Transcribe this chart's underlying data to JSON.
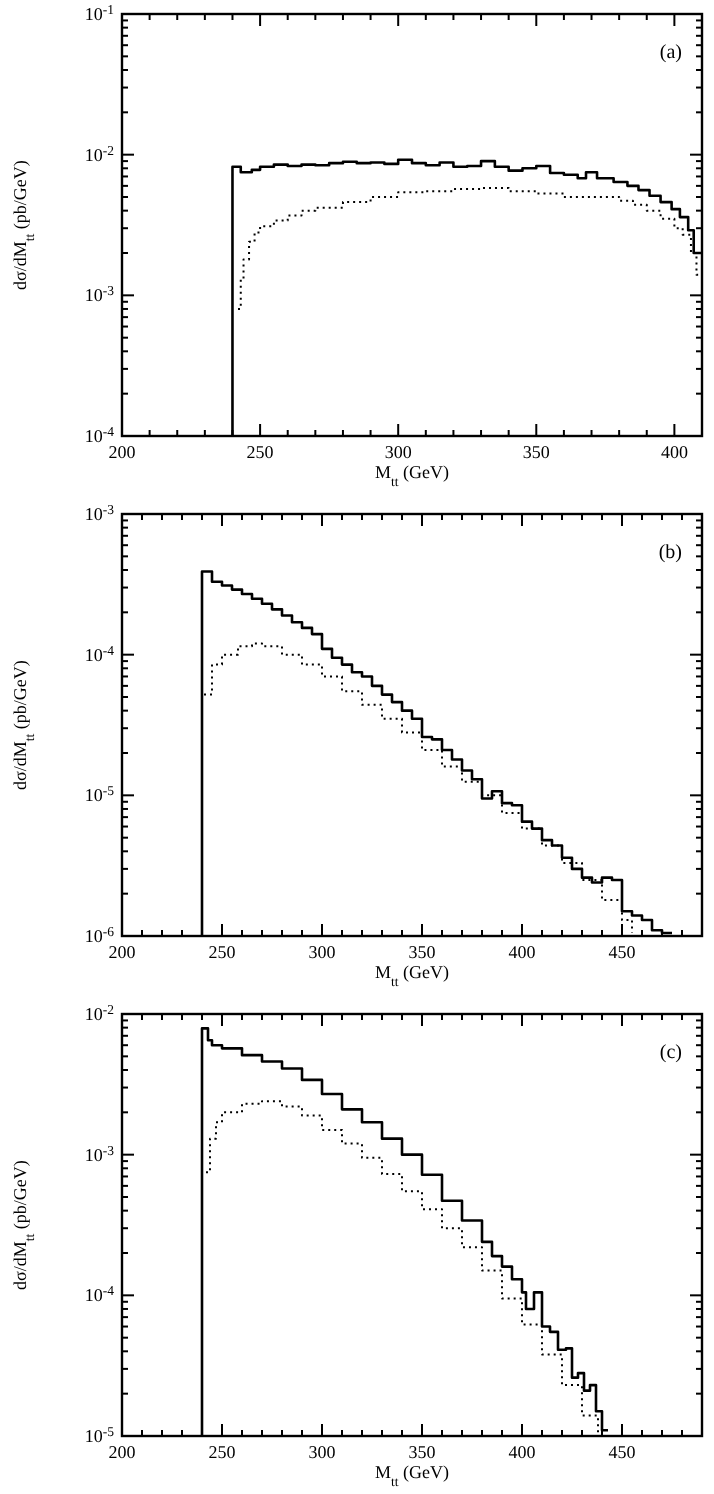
{
  "chart_data": [
    {
      "type": "step",
      "xlabel": "M$_{tt}$ (GeV)",
      "ylabel": "dσ/dM$_{tt}$ (pb/GeV)",
      "log": "y",
      "annotations": [
        "(a)"
      ],
      "xlim": [
        200,
        410
      ],
      "ylim": [
        0.0001,
        0.1
      ],
      "xticks": [
        200,
        {
          "value": 210,
          "label": null
        },
        {
          "value": 220,
          "label": null
        },
        {
          "value": 230,
          "label": null
        },
        {
          "value": 240,
          "label": null
        },
        250,
        {
          "value": 260,
          "label": null
        },
        {
          "value": 270,
          "label": null
        },
        {
          "value": 280,
          "label": null
        },
        {
          "value": 290,
          "label": null
        },
        300,
        {
          "value": 310,
          "label": null
        },
        {
          "value": 320,
          "label": null
        },
        {
          "value": 330,
          "label": null
        },
        {
          "value": 340,
          "label": null
        },
        350,
        {
          "value": 360,
          "label": null
        },
        {
          "value": 370,
          "label": null
        },
        {
          "value": 380,
          "label": null
        },
        {
          "value": 390,
          "label": null
        },
        400
      ],
      "yticks": [
        {
          "value": 0.0001,
          "label": "10$^{-4}$"
        },
        {
          "value": 0.0002,
          "label": null
        },
        {
          "value": 0.0003,
          "label": null
        },
        {
          "value": 0.0004,
          "label": null
        },
        {
          "value": 0.0005,
          "label": null
        },
        {
          "value": 0.0006,
          "label": null
        },
        {
          "value": 0.0007,
          "label": null
        },
        {
          "value": 0.0008,
          "label": null
        },
        {
          "value": 0.0009,
          "label": null
        },
        {
          "value": 0.001,
          "label": "10$^{-3}$"
        },
        {
          "value": 0.002,
          "label": null
        },
        {
          "value": 0.003,
          "label": null
        },
        {
          "value": 0.004,
          "label": null
        },
        {
          "value": 0.005,
          "label": null
        },
        {
          "value": 0.006,
          "label": null
        },
        {
          "value": 0.007,
          "label": null
        },
        {
          "value": 0.008,
          "label": null
        },
        {
          "value": 0.009,
          "label": null
        },
        {
          "value": 0.01,
          "label": "10$^{-2}$"
        },
        {
          "value": 0.02,
          "label": null
        },
        {
          "value": 0.03,
          "label": null
        },
        {
          "value": 0.04,
          "label": null
        },
        {
          "value": 0.05,
          "label": null
        },
        {
          "value": 0.06,
          "label": null
        },
        {
          "value": 0.07,
          "label": null
        },
        {
          "value": 0.08,
          "label": null
        },
        {
          "value": 0.09,
          "label": null
        },
        {
          "value": 0.1,
          "label": "10$^{-1}$"
        }
      ],
      "series": [
        {
          "color": "#000000",
          "line_style": "solid",
          "x": [
            240,
            240,
            243,
            247,
            250,
            255,
            260,
            265,
            270,
            275,
            280,
            285,
            290,
            295,
            300,
            305,
            310,
            315,
            320,
            325,
            330,
            335,
            340,
            345,
            350,
            355,
            360,
            365,
            368,
            372,
            378,
            383,
            387,
            391,
            395,
            399,
            402,
            405,
            407,
            410
          ],
          "values": [
            0.0001,
            0.0082,
            0.0075,
            0.0078,
            0.0082,
            0.0085,
            0.0083,
            0.0085,
            0.0084,
            0.0087,
            0.0089,
            0.0087,
            0.0088,
            0.0086,
            0.0092,
            0.0087,
            0.0084,
            0.0088,
            0.0082,
            0.0083,
            0.009,
            0.0082,
            0.0077,
            0.008,
            0.0083,
            0.0074,
            0.0072,
            0.0068,
            0.0075,
            0.0068,
            0.0064,
            0.006,
            0.0056,
            0.0051,
            0.0046,
            0.0041,
            0.0036,
            0.0029,
            0.002,
            0.002
          ]
        },
        {
          "color": "#000000",
          "line_style": "dotted",
          "x": [
            242,
            243,
            244,
            246,
            248,
            250,
            255,
            260,
            265,
            270,
            280,
            290,
            300,
            310,
            320,
            330,
            340,
            350,
            360,
            370,
            380,
            385,
            390,
            395,
            400,
            403,
            406,
            408,
            410
          ],
          "values": [
            0.0008,
            0.0013,
            0.0018,
            0.0024,
            0.0028,
            0.0031,
            0.0034,
            0.0037,
            0.004,
            0.0042,
            0.0046,
            0.005,
            0.0054,
            0.0055,
            0.0057,
            0.0058,
            0.0055,
            0.0053,
            0.005,
            0.005,
            0.0047,
            0.0044,
            0.004,
            0.0035,
            0.003,
            0.0027,
            0.002,
            0.0014,
            0.0014
          ]
        }
      ]
    },
    {
      "type": "step",
      "xlabel": "M$_{tt}$ (GeV)",
      "ylabel": "dσ/dM$_{tt}$ (pb/GeV)",
      "log": "y",
      "annotations": [
        "(b)"
      ],
      "xlim": [
        200,
        490
      ],
      "ylim": [
        1e-06,
        0.001
      ],
      "xticks": [
        200,
        {
          "value": 210,
          "label": null
        },
        {
          "value": 220,
          "label": null
        },
        {
          "value": 230,
          "label": null
        },
        {
          "value": 240,
          "label": null
        },
        250,
        {
          "value": 260,
          "label": null
        },
        {
          "value": 270,
          "label": null
        },
        {
          "value": 280,
          "label": null
        },
        {
          "value": 290,
          "label": null
        },
        300,
        {
          "value": 310,
          "label": null
        },
        {
          "value": 320,
          "label": null
        },
        {
          "value": 330,
          "label": null
        },
        {
          "value": 340,
          "label": null
        },
        350,
        {
          "value": 360,
          "label": null
        },
        {
          "value": 370,
          "label": null
        },
        {
          "value": 380,
          "label": null
        },
        {
          "value": 390,
          "label": null
        },
        400,
        {
          "value": 410,
          "label": null
        },
        {
          "value": 420,
          "label": null
        },
        {
          "value": 430,
          "label": null
        },
        {
          "value": 440,
          "label": null
        },
        450,
        {
          "value": 460,
          "label": null
        },
        {
          "value": 470,
          "label": null
        },
        {
          "value": 480,
          "label": null
        }
      ],
      "yticks": [
        {
          "value": 1e-06,
          "label": "10$^{-6}$"
        },
        {
          "value": 2e-06,
          "label": null
        },
        {
          "value": 3e-06,
          "label": null
        },
        {
          "value": 4e-06,
          "label": null
        },
        {
          "value": 5e-06,
          "label": null
        },
        {
          "value": 6e-06,
          "label": null
        },
        {
          "value": 7e-06,
          "label": null
        },
        {
          "value": 8e-06,
          "label": null
        },
        {
          "value": 9e-06,
          "label": null
        },
        {
          "value": 1e-05,
          "label": "10$^{-5}$"
        },
        {
          "value": 2e-05,
          "label": null
        },
        {
          "value": 3e-05,
          "label": null
        },
        {
          "value": 4e-05,
          "label": null
        },
        {
          "value": 5e-05,
          "label": null
        },
        {
          "value": 6e-05,
          "label": null
        },
        {
          "value": 7e-05,
          "label": null
        },
        {
          "value": 8e-05,
          "label": null
        },
        {
          "value": 9e-05,
          "label": null
        },
        {
          "value": 0.0001,
          "label": "10$^{-4}$"
        },
        {
          "value": 0.0002,
          "label": null
        },
        {
          "value": 0.0003,
          "label": null
        },
        {
          "value": 0.0004,
          "label": null
        },
        {
          "value": 0.0005,
          "label": null
        },
        {
          "value": 0.0006,
          "label": null
        },
        {
          "value": 0.0007,
          "label": null
        },
        {
          "value": 0.0008,
          "label": null
        },
        {
          "value": 0.0009,
          "label": null
        },
        {
          "value": 0.001,
          "label": "10$^{-3}$"
        }
      ],
      "series": [
        {
          "color": "#000000",
          "line_style": "solid",
          "x": [
            240,
            240,
            245,
            250,
            255,
            260,
            265,
            270,
            275,
            280,
            285,
            290,
            295,
            300,
            305,
            310,
            315,
            320,
            325,
            330,
            335,
            340,
            345,
            350,
            355,
            360,
            365,
            370,
            375,
            380,
            385,
            390,
            395,
            400,
            405,
            410,
            415,
            420,
            425,
            430,
            435,
            440,
            445,
            450,
            455,
            460,
            465,
            470,
            475
          ],
          "values": [
            1e-06,
            0.00039,
            0.00033,
            0.00031,
            0.00029,
            0.00027,
            0.00025,
            0.00023,
            0.00021,
            0.00019,
            0.00017,
            0.000155,
            0.00014,
            0.00011,
            9.5e-05,
            8.5e-05,
            7.5e-05,
            7e-05,
            6e-05,
            5.2e-05,
            4.6e-05,
            4e-05,
            3.5e-05,
            2.6e-05,
            2.5e-05,
            2.1e-05,
            1.8e-05,
            1.5e-05,
            1.3e-05,
            9.5e-06,
            1.07e-05,
            8.8e-06,
            8.5e-06,
            6.5e-06,
            5.8e-06,
            4.8e-06,
            4.4e-06,
            3.6e-06,
            3e-06,
            2.6e-06,
            2.4e-06,
            2.6e-06,
            2.5e-06,
            1.5e-06,
            1.4e-06,
            1.3e-06,
            1.1e-06,
            1.05e-06,
            1.05e-06
          ]
        },
        {
          "color": "#000000",
          "line_style": "dotted",
          "x": [
            241,
            245,
            250,
            258,
            265,
            270,
            280,
            290,
            300,
            310,
            320,
            330,
            340,
            350,
            360,
            370,
            380,
            390,
            400,
            410,
            420,
            430,
            440,
            450,
            455
          ],
          "values": [
            5.2e-05,
            8.5e-05,
            0.0001,
            0.000115,
            0.00012,
            0.000115,
            0.0001,
            8.5e-05,
            7e-05,
            5.5e-05,
            4.4e-05,
            3.5e-05,
            2.8e-05,
            2.1e-05,
            1.6e-05,
            1.25e-05,
            1e-05,
            7.5e-06,
            5.8e-06,
            4.4e-06,
            3.3e-06,
            2.5e-06,
            1.8e-06,
            1.3e-06,
            1.05e-06
          ]
        }
      ]
    },
    {
      "type": "step",
      "xlabel": "M$_{tt}$ (GeV)",
      "ylabel": "dσ/dM$_{tt}$ (pb/GeV)",
      "log": "y",
      "annotations": [
        "(c)"
      ],
      "xlim": [
        200,
        490
      ],
      "ylim": [
        1e-05,
        0.01
      ],
      "xticks": [
        200,
        {
          "value": 210,
          "label": null
        },
        {
          "value": 220,
          "label": null
        },
        {
          "value": 230,
          "label": null
        },
        {
          "value": 240,
          "label": null
        },
        250,
        {
          "value": 260,
          "label": null
        },
        {
          "value": 270,
          "label": null
        },
        {
          "value": 280,
          "label": null
        },
        {
          "value": 290,
          "label": null
        },
        300,
        {
          "value": 310,
          "label": null
        },
        {
          "value": 320,
          "label": null
        },
        {
          "value": 330,
          "label": null
        },
        {
          "value": 340,
          "label": null
        },
        350,
        {
          "value": 360,
          "label": null
        },
        {
          "value": 370,
          "label": null
        },
        {
          "value": 380,
          "label": null
        },
        {
          "value": 390,
          "label": null
        },
        400,
        {
          "value": 410,
          "label": null
        },
        {
          "value": 420,
          "label": null
        },
        {
          "value": 430,
          "label": null
        },
        {
          "value": 440,
          "label": null
        },
        450,
        {
          "value": 460,
          "label": null
        },
        {
          "value": 470,
          "label": null
        },
        {
          "value": 480,
          "label": null
        }
      ],
      "yticks": [
        {
          "value": 1e-05,
          "label": "10$^{-5}$"
        },
        {
          "value": 2e-05,
          "label": null
        },
        {
          "value": 3e-05,
          "label": null
        },
        {
          "value": 4e-05,
          "label": null
        },
        {
          "value": 5e-05,
          "label": null
        },
        {
          "value": 6e-05,
          "label": null
        },
        {
          "value": 7e-05,
          "label": null
        },
        {
          "value": 8e-05,
          "label": null
        },
        {
          "value": 9e-05,
          "label": null
        },
        {
          "value": 0.0001,
          "label": "10$^{-4}$"
        },
        {
          "value": 0.0002,
          "label": null
        },
        {
          "value": 0.0003,
          "label": null
        },
        {
          "value": 0.0004,
          "label": null
        },
        {
          "value": 0.0005,
          "label": null
        },
        {
          "value": 0.0006,
          "label": null
        },
        {
          "value": 0.0007,
          "label": null
        },
        {
          "value": 0.0008,
          "label": null
        },
        {
          "value": 0.0009,
          "label": null
        },
        {
          "value": 0.001,
          "label": "10$^{-3}$"
        },
        {
          "value": 0.002,
          "label": null
        },
        {
          "value": 0.003,
          "label": null
        },
        {
          "value": 0.004,
          "label": null
        },
        {
          "value": 0.005,
          "label": null
        },
        {
          "value": 0.006,
          "label": null
        },
        {
          "value": 0.007,
          "label": null
        },
        {
          "value": 0.008,
          "label": null
        },
        {
          "value": 0.009,
          "label": null
        },
        {
          "value": 0.01,
          "label": "10$^{-2}$"
        }
      ],
      "series": [
        {
          "color": "#000000",
          "line_style": "solid",
          "x": [
            240,
            240,
            243,
            245,
            250,
            260,
            270,
            280,
            290,
            300,
            310,
            320,
            330,
            340,
            350,
            360,
            370,
            380,
            385,
            390,
            395,
            400,
            402,
            406,
            410,
            414,
            418,
            422,
            425,
            428,
            431,
            434,
            437,
            440,
            443
          ],
          "values": [
            1e-05,
            0.0079,
            0.0065,
            0.006,
            0.0057,
            0.0051,
            0.0046,
            0.0041,
            0.0034,
            0.0027,
            0.0021,
            0.0017,
            0.0013,
            0.001,
            0.00072,
            0.00047,
            0.00034,
            0.00024,
            0.00019,
            0.00016,
            0.00013,
            0.000105,
            8e-05,
            0.000105,
            6e-05,
            5.5e-05,
            4.1e-05,
            4.2e-05,
            2.6e-05,
            2.8e-05,
            2.1e-05,
            2.3e-05,
            1.5e-05,
            1.1e-05,
            1.1e-05
          ]
        },
        {
          "color": "#000000",
          "line_style": "dotted",
          "x": [
            242,
            244,
            247,
            250,
            260,
            270,
            280,
            290,
            300,
            310,
            320,
            330,
            340,
            350,
            360,
            370,
            380,
            390,
            400,
            410,
            420,
            430,
            438
          ],
          "values": [
            0.00075,
            0.0013,
            0.0017,
            0.002,
            0.0023,
            0.0024,
            0.0022,
            0.0019,
            0.0015,
            0.0012,
            0.00095,
            0.00073,
            0.00055,
            0.00041,
            0.0003,
            0.00022,
            0.00015,
            9.5e-05,
            6.2e-05,
            3.8e-05,
            2.3e-05,
            1.4e-05,
            1e-05
          ]
        }
      ]
    }
  ]
}
